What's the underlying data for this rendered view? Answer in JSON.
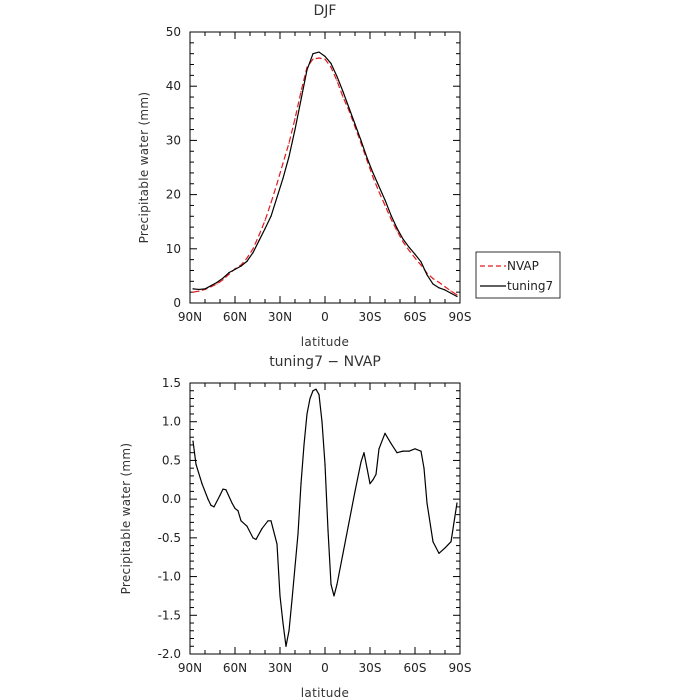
{
  "chart_data": [
    {
      "type": "line",
      "title": "DJF",
      "xlabel": "latitude",
      "ylabel": "Precipitable water (mm)",
      "x_tick_labels": [
        "90N",
        "60N",
        "30N",
        "0",
        "30S",
        "60S",
        "90S"
      ],
      "x_tick_values": [
        90,
        60,
        30,
        0,
        -30,
        -60,
        -90
      ],
      "xlim": [
        90,
        -90
      ],
      "ylim": [
        0,
        50
      ],
      "y_ticks": [
        0,
        10,
        20,
        30,
        40,
        50
      ],
      "legend_position": "right",
      "series": [
        {
          "name": "NVAP",
          "color": "#e31a1c",
          "style": "dashed",
          "x": [
            88,
            84,
            80,
            76,
            72,
            68,
            64,
            60,
            56,
            52,
            48,
            44,
            40,
            36,
            32,
            28,
            24,
            20,
            16,
            12,
            8,
            4,
            0,
            -4,
            -8,
            -12,
            -16,
            -20,
            -24,
            -28,
            -32,
            -36,
            -40,
            -44,
            -48,
            -52,
            -56,
            -60,
            -64,
            -68,
            -72,
            -76,
            -80,
            -84,
            -88
          ],
          "values": [
            2.0,
            2.2,
            2.5,
            3.0,
            3.5,
            4.3,
            5.3,
            6.3,
            7.0,
            8.3,
            10.0,
            12.5,
            15.2,
            18.5,
            22.0,
            25.8,
            29.5,
            34.0,
            39.0,
            43.5,
            45.0,
            45.2,
            45.0,
            43.5,
            41.0,
            38.0,
            35.5,
            32.5,
            29.5,
            26.3,
            23.2,
            20.5,
            18.0,
            15.5,
            13.3,
            11.3,
            9.7,
            8.3,
            7.0,
            5.5,
            4.5,
            3.8,
            3.0,
            2.2,
            1.5
          ]
        },
        {
          "name": "tuning7",
          "color": "#000000",
          "style": "solid",
          "x": [
            88,
            84,
            80,
            76,
            72,
            68,
            64,
            60,
            56,
            52,
            48,
            44,
            40,
            36,
            32,
            28,
            24,
            20,
            16,
            12,
            8,
            4,
            0,
            -4,
            -8,
            -12,
            -16,
            -20,
            -24,
            -28,
            -32,
            -36,
            -40,
            -44,
            -48,
            -52,
            -56,
            -60,
            -64,
            -68,
            -72,
            -76,
            -80,
            -84,
            -88
          ],
          "values": [
            2.6,
            2.5,
            2.6,
            3.2,
            3.8,
            4.6,
            5.6,
            6.2,
            6.8,
            7.7,
            9.3,
            11.5,
            13.7,
            16.0,
            19.5,
            23.0,
            27.0,
            32.0,
            37.5,
            43.0,
            46.0,
            46.3,
            45.5,
            44.2,
            41.8,
            39.0,
            36.0,
            33.0,
            30.0,
            26.8,
            24.0,
            21.5,
            19.0,
            16.2,
            13.8,
            11.8,
            10.3,
            9.0,
            7.6,
            5.2,
            3.5,
            2.8,
            2.4,
            1.8,
            1.2
          ]
        }
      ]
    },
    {
      "type": "line",
      "title": "tuning7 − NVAP",
      "xlabel": "latitude",
      "ylabel": "Precipitable water (mm)",
      "x_tick_labels": [
        "90N",
        "60N",
        "30N",
        "0",
        "30S",
        "60S",
        "90S"
      ],
      "x_tick_values": [
        90,
        60,
        30,
        0,
        -30,
        -60,
        -90
      ],
      "xlim": [
        90,
        -90
      ],
      "ylim": [
        -2.0,
        1.5
      ],
      "y_tick_labels": [
        "-2.0",
        "-1.5",
        "-1.0",
        "-0.5",
        "0.0",
        "0.5",
        "1.0",
        "1.5"
      ],
      "y_ticks": [
        -2.0,
        -1.5,
        -1.0,
        -0.5,
        0.0,
        0.5,
        1.0,
        1.5
      ],
      "series": [
        {
          "color": "#000000",
          "style": "solid",
          "x": [
            88,
            86,
            82,
            78,
            76,
            74,
            70,
            68,
            66,
            62,
            60,
            58,
            56,
            52,
            48,
            46,
            42,
            38,
            36,
            32,
            30,
            28,
            26,
            24,
            22,
            18,
            16,
            14,
            12,
            10,
            8,
            6,
            4,
            2,
            0,
            -2,
            -4,
            -6,
            -8,
            -12,
            -16,
            -20,
            -24,
            -26,
            -28,
            -30,
            -32,
            -34,
            -36,
            -40,
            -44,
            -48,
            -52,
            -56,
            -60,
            -64,
            -66,
            -68,
            -72,
            -76,
            -80,
            -84,
            -86,
            -88
          ],
          "values": [
            0.75,
            0.45,
            0.2,
            0.0,
            -0.08,
            -0.1,
            0.05,
            0.13,
            0.12,
            -0.05,
            -0.12,
            -0.15,
            -0.28,
            -0.35,
            -0.5,
            -0.52,
            -0.38,
            -0.28,
            -0.28,
            -0.58,
            -1.25,
            -1.6,
            -1.9,
            -1.7,
            -1.3,
            -0.45,
            0.2,
            0.7,
            1.1,
            1.3,
            1.4,
            1.42,
            1.35,
            1.0,
            0.45,
            -0.4,
            -1.1,
            -1.25,
            -1.1,
            -0.7,
            -0.3,
            0.1,
            0.48,
            0.6,
            0.4,
            0.2,
            0.25,
            0.32,
            0.65,
            0.85,
            0.72,
            0.6,
            0.62,
            0.62,
            0.65,
            0.62,
            0.4,
            -0.05,
            -0.55,
            -0.7,
            -0.63,
            -0.55,
            -0.3,
            -0.05
          ]
        }
      ]
    }
  ]
}
